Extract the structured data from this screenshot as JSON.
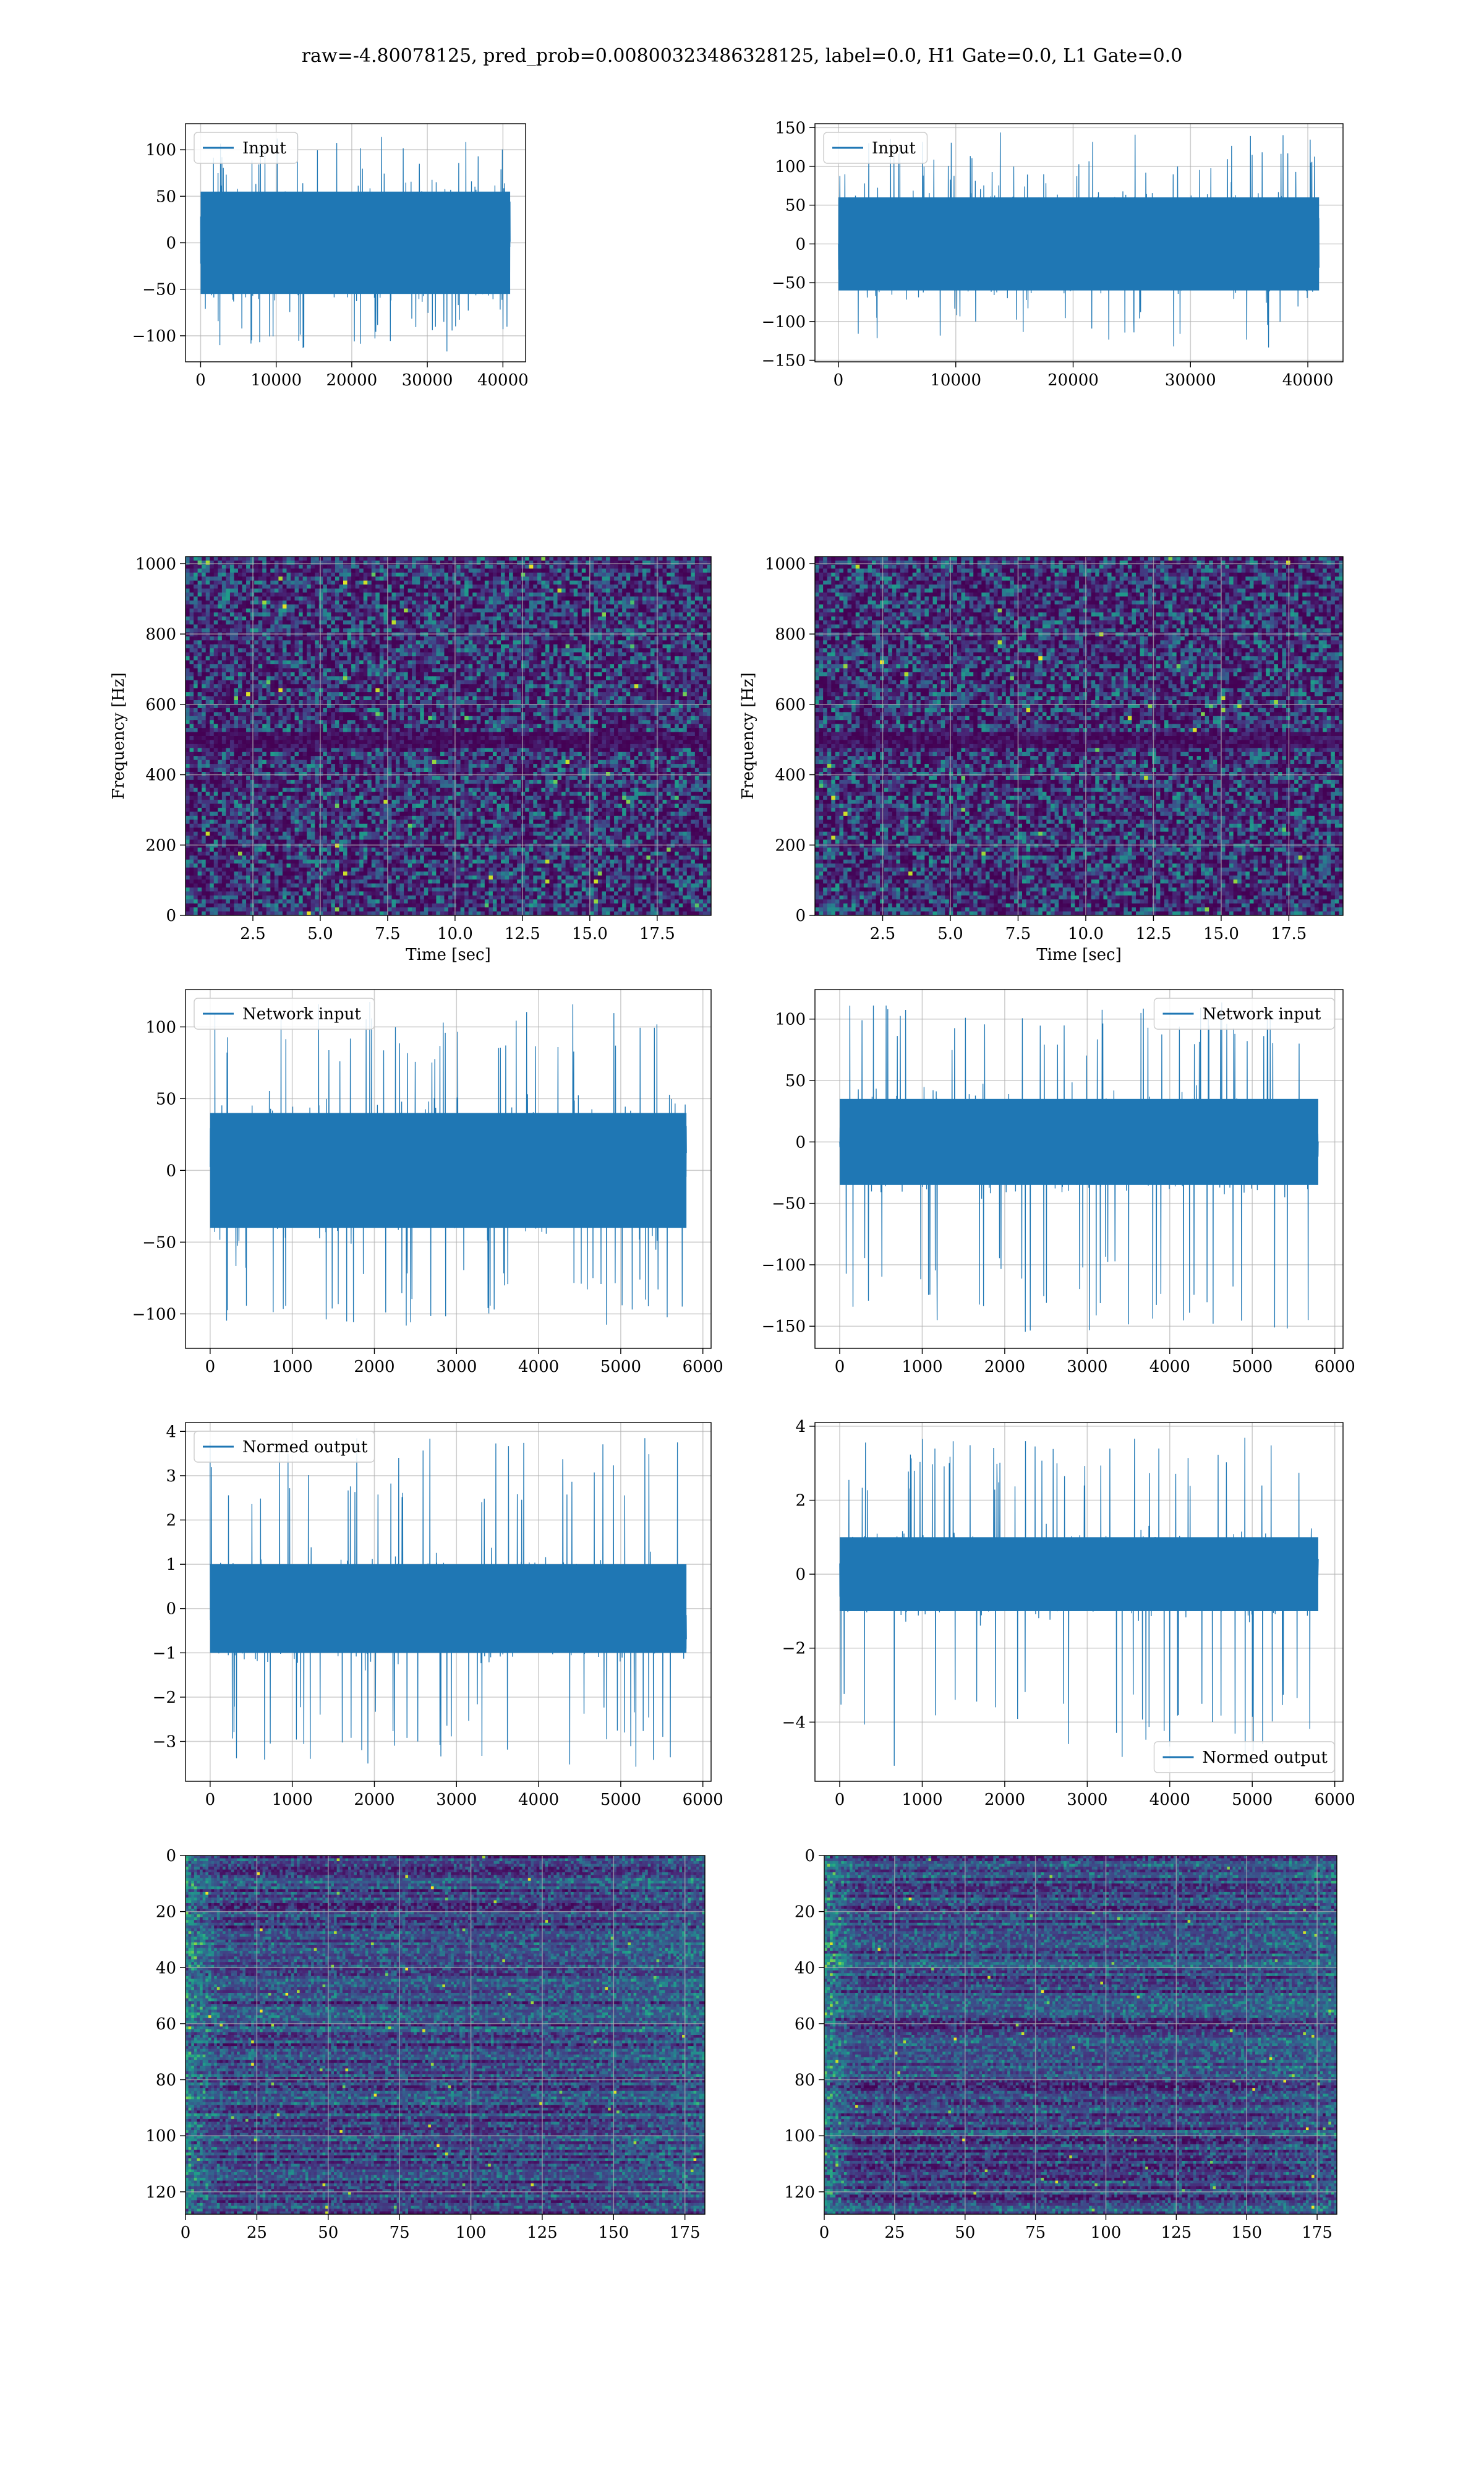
{
  "figure": {
    "suptitle": "raw=-4.80078125, pred_prob=0.00800323486328125, label=0.0, H1 Gate=0.0, L1 Gate=0.0",
    "series_color": "#1f77b4",
    "grid_color": "#b0b0b0",
    "spine_color": "#000000"
  },
  "chart_data": [
    {
      "id": "r0c0",
      "type": "line",
      "row": 0,
      "col": 0,
      "title": "",
      "xlabel": "",
      "ylabel": "",
      "legend": {
        "label": "Input",
        "loc": "upper-left"
      },
      "xlim": [
        -2000,
        43000
      ],
      "ylim": [
        -128,
        128
      ],
      "xticks": [
        0,
        10000,
        20000,
        30000,
        40000
      ],
      "xtick_labels": [
        "0",
        "10000",
        "20000",
        "30000",
        "40000"
      ],
      "yticks": [
        -100,
        -50,
        0,
        50,
        100
      ],
      "ytick_labels": [
        "−100",
        "−50",
        "0",
        "50",
        "100"
      ],
      "n_samples": 40960,
      "x_range": [
        0,
        40960
      ],
      "envelope": {
        "core_low": -55,
        "core_high": 55,
        "spike_low": -118,
        "spike_high": 118
      }
    },
    {
      "id": "r0c1",
      "type": "line",
      "row": 0,
      "col": 1,
      "title": "",
      "xlabel": "",
      "ylabel": "",
      "legend": {
        "label": "Input",
        "loc": "upper-left"
      },
      "xlim": [
        -2000,
        43000
      ],
      "ylim": [
        -152,
        155
      ],
      "xticks": [
        0,
        10000,
        20000,
        30000,
        40000
      ],
      "xtick_labels": [
        "0",
        "10000",
        "20000",
        "30000",
        "40000"
      ],
      "yticks": [
        -150,
        -100,
        -50,
        0,
        50,
        100,
        150
      ],
      "ytick_labels": [
        "−150",
        "−100",
        "−50",
        "0",
        "50",
        "100",
        "150"
      ],
      "n_samples": 40960,
      "x_range": [
        0,
        40960
      ],
      "envelope": {
        "core_low": -60,
        "core_high": 60,
        "spike_low": -137,
        "spike_high": 145
      }
    },
    {
      "id": "r1c0",
      "type": "heatmap",
      "row": 1,
      "col": 0,
      "title": "",
      "xlabel": "Time [sec]",
      "ylabel": "Frequency [Hz]",
      "xlim": [
        0,
        19.5
      ],
      "ylim": [
        0,
        1020
      ],
      "xticks": [
        2.5,
        5.0,
        7.5,
        10.0,
        12.5,
        15.0,
        17.5
      ],
      "xtick_labels": [
        "2.5",
        "5.0",
        "7.5",
        "10.0",
        "12.5",
        "15.0",
        "17.5"
      ],
      "yticks": [
        0,
        200,
        400,
        600,
        800,
        1000
      ],
      "ytick_labels": [
        "0",
        "200",
        "400",
        "600",
        "800",
        "1000"
      ],
      "colormap": "viridis",
      "colorbar": false,
      "dark_band_hz": [
        480,
        520
      ]
    },
    {
      "id": "r1c1",
      "type": "heatmap",
      "row": 1,
      "col": 1,
      "title": "",
      "xlabel": "Time [sec]",
      "ylabel": "Frequency [Hz]",
      "xlim": [
        0,
        19.5
      ],
      "ylim": [
        0,
        1020
      ],
      "xticks": [
        2.5,
        5.0,
        7.5,
        10.0,
        12.5,
        15.0,
        17.5
      ],
      "xtick_labels": [
        "2.5",
        "5.0",
        "7.5",
        "10.0",
        "12.5",
        "15.0",
        "17.5"
      ],
      "yticks": [
        0,
        200,
        400,
        600,
        800,
        1000
      ],
      "ytick_labels": [
        "0",
        "200",
        "400",
        "600",
        "800",
        "1000"
      ],
      "colormap": "viridis",
      "colorbar": false,
      "dark_band_hz": [
        480,
        520
      ]
    },
    {
      "id": "r2c0",
      "type": "line",
      "row": 2,
      "col": 0,
      "title": "",
      "xlabel": "",
      "ylabel": "",
      "legend": {
        "label": "Network input",
        "loc": "upper-left"
      },
      "xlim": [
        -300,
        6100
      ],
      "ylim": [
        -124,
        126
      ],
      "xticks": [
        0,
        1000,
        2000,
        3000,
        4000,
        5000,
        6000
      ],
      "xtick_labels": [
        "0",
        "1000",
        "2000",
        "3000",
        "4000",
        "5000",
        "6000"
      ],
      "yticks": [
        -100,
        -50,
        0,
        50,
        100
      ],
      "ytick_labels": [
        "−100",
        "−50",
        "0",
        "50",
        "100"
      ],
      "n_samples": 5800,
      "x_range": [
        0,
        5800
      ],
      "envelope": {
        "core_low": -40,
        "core_high": 40,
        "spike_low": -110,
        "spike_high": 120
      }
    },
    {
      "id": "r2c1",
      "type": "line",
      "row": 2,
      "col": 1,
      "title": "",
      "xlabel": "",
      "ylabel": "",
      "legend": {
        "label": "Network input",
        "loc": "upper-right"
      },
      "xlim": [
        -300,
        6100
      ],
      "ylim": [
        -168,
        124
      ],
      "xticks": [
        0,
        1000,
        2000,
        3000,
        4000,
        5000,
        6000
      ],
      "xtick_labels": [
        "0",
        "1000",
        "2000",
        "3000",
        "4000",
        "5000",
        "6000"
      ],
      "yticks": [
        -150,
        -100,
        -50,
        0,
        50,
        100
      ],
      "ytick_labels": [
        "−150",
        "−100",
        "−50",
        "0",
        "50",
        "100"
      ],
      "n_samples": 5800,
      "x_range": [
        0,
        5800
      ],
      "envelope": {
        "core_low": -35,
        "core_high": 35,
        "spike_low": -155,
        "spike_high": 115
      }
    },
    {
      "id": "r3c0",
      "type": "line",
      "row": 3,
      "col": 0,
      "title": "",
      "xlabel": "",
      "ylabel": "",
      "legend": {
        "label": "Normed output",
        "loc": "upper-left"
      },
      "xlim": [
        -300,
        6100
      ],
      "ylim": [
        -3.9,
        4.2
      ],
      "xticks": [
        0,
        1000,
        2000,
        3000,
        4000,
        5000,
        6000
      ],
      "xtick_labels": [
        "0",
        "1000",
        "2000",
        "3000",
        "4000",
        "5000",
        "6000"
      ],
      "yticks": [
        -3,
        -2,
        -1,
        0,
        1,
        2,
        3,
        4
      ],
      "ytick_labels": [
        "−3",
        "−2",
        "−1",
        "0",
        "1",
        "2",
        "3",
        "4"
      ],
      "n_samples": 5800,
      "x_range": [
        0,
        5800
      ],
      "envelope": {
        "core_low": -1.0,
        "core_high": 1.0,
        "spike_low": -3.6,
        "spike_high": 3.9
      }
    },
    {
      "id": "r3c1",
      "type": "line",
      "row": 3,
      "col": 1,
      "title": "",
      "xlabel": "",
      "ylabel": "",
      "legend": {
        "label": "Normed output",
        "loc": "lower-right"
      },
      "xlim": [
        -300,
        6100
      ],
      "ylim": [
        -5.6,
        4.1
      ],
      "xticks": [
        0,
        1000,
        2000,
        3000,
        4000,
        5000,
        6000
      ],
      "xtick_labels": [
        "0",
        "1000",
        "2000",
        "3000",
        "4000",
        "5000",
        "6000"
      ],
      "yticks": [
        -4,
        -2,
        0,
        2,
        4
      ],
      "ytick_labels": [
        "−4",
        "−2",
        "0",
        "2",
        "4"
      ],
      "n_samples": 5800,
      "x_range": [
        0,
        5800
      ],
      "envelope": {
        "core_low": -1.0,
        "core_high": 1.0,
        "spike_low": -5.2,
        "spike_high": 3.7
      }
    },
    {
      "id": "r4c0",
      "type": "heatmap",
      "row": 4,
      "col": 0,
      "title": "",
      "xlabel": "",
      "ylabel": "",
      "xlim": [
        0,
        182
      ],
      "ylim": [
        128,
        0
      ],
      "xticks": [
        0,
        25,
        50,
        75,
        100,
        125,
        150,
        175
      ],
      "xtick_labels": [
        "0",
        "25",
        "50",
        "75",
        "100",
        "125",
        "150",
        "175"
      ],
      "yticks": [
        0,
        20,
        40,
        60,
        80,
        100,
        120
      ],
      "ytick_labels": [
        "0",
        "20",
        "40",
        "60",
        "80",
        "100",
        "120"
      ],
      "colormap": "viridis",
      "colorbar": false,
      "shape": [
        128,
        182
      ]
    },
    {
      "id": "r4c1",
      "type": "heatmap",
      "row": 4,
      "col": 1,
      "title": "",
      "xlabel": "",
      "ylabel": "",
      "xlim": [
        0,
        182
      ],
      "ylim": [
        128,
        0
      ],
      "xticks": [
        0,
        25,
        50,
        75,
        100,
        125,
        150,
        175
      ],
      "xtick_labels": [
        "0",
        "25",
        "50",
        "75",
        "100",
        "125",
        "150",
        "175"
      ],
      "yticks": [
        0,
        20,
        40,
        60,
        80,
        100,
        120
      ],
      "ytick_labels": [
        "0",
        "20",
        "40",
        "60",
        "80",
        "100",
        "120"
      ],
      "colormap": "viridis",
      "colorbar": false,
      "shape": [
        128,
        182
      ]
    }
  ]
}
